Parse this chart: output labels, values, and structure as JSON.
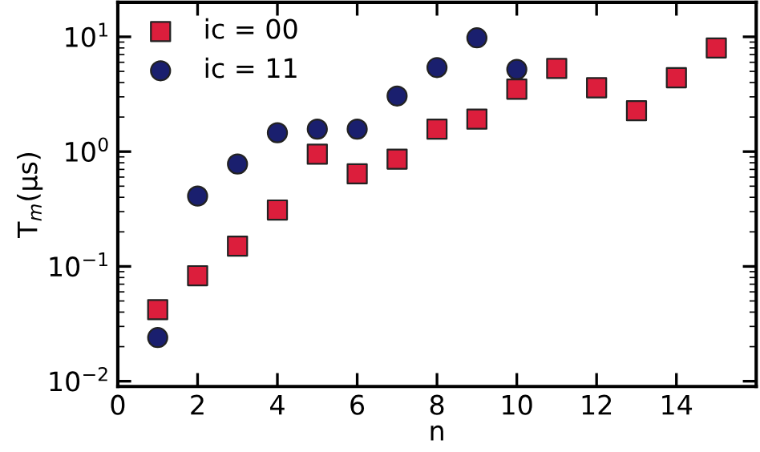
{
  "chart_data": {
    "type": "scatter",
    "xlabel": "n",
    "ylabel": "T$_{m}$(μs)",
    "log": "y",
    "x": [
      1,
      2,
      3,
      4,
      5,
      6,
      7,
      8,
      9,
      10,
      11,
      12,
      13,
      14,
      15
    ],
    "series": [
      {
        "name": "ic = 00",
        "color": "#dc1e3c",
        "marker": "square",
        "values": [
          0.042,
          0.083,
          0.15,
          0.31,
          0.95,
          0.64,
          0.86,
          1.57,
          1.92,
          3.5,
          5.3,
          3.6,
          2.27,
          4.4,
          8.0
        ]
      },
      {
        "name": "ic = 11",
        "color": "#1a1f6e",
        "marker": "circle",
        "x": [
          1,
          2,
          3,
          4,
          5,
          6,
          7,
          8,
          9,
          10
        ],
        "values": [
          0.024,
          0.41,
          0.78,
          1.46,
          1.57,
          1.57,
          3.05,
          5.4,
          9.8,
          5.2
        ]
      }
    ],
    "xlim": [
      0,
      16
    ],
    "ylim": [
      0.009,
      20
    ],
    "xticks": [
      0,
      2,
      4,
      6,
      8,
      10,
      12,
      14
    ],
    "yticks": [
      {
        "value": 0.01,
        "label": "10$^{−2}$"
      },
      {
        "value": 0.1,
        "label": "10$^{−1}$"
      },
      {
        "value": 1,
        "label": "10$^{0}$"
      },
      {
        "value": 10,
        "label": "10$^{1}$"
      }
    ],
    "legend": "top left",
    "grid": false
  }
}
